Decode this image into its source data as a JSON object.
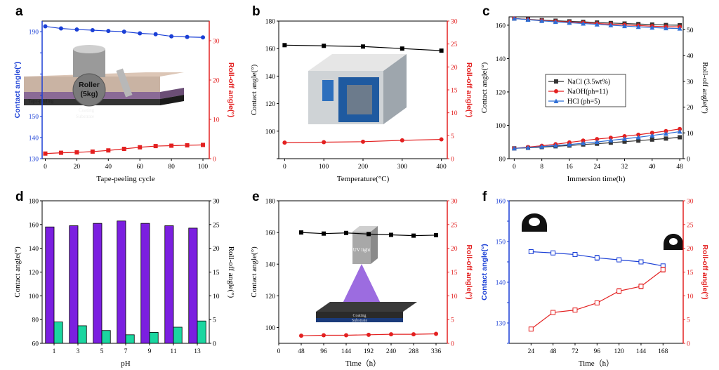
{
  "panels": [
    {
      "id": "a",
      "letter": "a",
      "xlabel": "Tape-peeling cycle",
      "ylabel_left": "Contact angle(°)",
      "ylabel_right": "Roll-off angle(°)",
      "left_color": "#1a3fd6",
      "right_color": "#e32020",
      "xlim": [
        -2,
        104
      ],
      "xticks": [
        0,
        20,
        40,
        60,
        80,
        100
      ],
      "ylim_left": [
        130,
        195
      ],
      "yticks_left": [
        130,
        140,
        150,
        160,
        170,
        180,
        190
      ],
      "ytick_labels_left": [
        "130",
        "140",
        "150",
        "",
        "",
        "",
        "190"
      ],
      "ylim_right": [
        0,
        35
      ],
      "yticks_right": [
        0,
        10,
        20,
        30
      ],
      "series": [
        {
          "axis": "left",
          "marker": "circle",
          "color": "#1a3fd6",
          "x": [
            0,
            10,
            20,
            30,
            40,
            50,
            60,
            70,
            80,
            90,
            100
          ],
          "y": [
            192.5,
            191.5,
            191,
            190.7,
            190.3,
            190,
            189.2,
            188.8,
            187.8,
            187.5,
            187.3
          ]
        },
        {
          "axis": "right",
          "marker": "square",
          "color": "#e32020",
          "x": [
            0,
            10,
            20,
            30,
            40,
            50,
            60,
            70,
            80,
            90,
            100
          ],
          "y": [
            1.3,
            1.5,
            1.6,
            1.8,
            2.1,
            2.5,
            2.9,
            3.2,
            3.3,
            3.4,
            3.5
          ]
        }
      ],
      "inset": {
        "type": "roller",
        "roller_text": "Roller",
        "weight_text": "(5kg)",
        "tape_text": "Tape-peeling",
        "coating_text": "Coating",
        "substrate_text": "Substrate"
      }
    },
    {
      "id": "b",
      "letter": "b",
      "xlabel": "Temperature(°C)",
      "ylabel_left": "Contact angle(°)",
      "ylabel_right": "Roll-off angle(°)",
      "left_color": "#000000",
      "right_color": "#e32020",
      "xlim": [
        -15,
        415
      ],
      "xticks": [
        0,
        100,
        200,
        300,
        400
      ],
      "ylim_left": [
        80,
        180
      ],
      "yticks_left": [
        80,
        100,
        120,
        140,
        160,
        180
      ],
      "ytick_labels_left": [
        "",
        "100",
        "120",
        "140",
        "160",
        "180"
      ],
      "ylim_right": [
        0,
        30
      ],
      "yticks_right": [
        0,
        5,
        10,
        15,
        20,
        25,
        30
      ],
      "series": [
        {
          "axis": "left",
          "marker": "square",
          "color": "#000000",
          "x": [
            0,
            100,
            200,
            300,
            400
          ],
          "y": [
            162.5,
            162,
            161.5,
            160,
            158.5
          ]
        },
        {
          "axis": "right",
          "marker": "circle",
          "color": "#e32020",
          "x": [
            0,
            100,
            200,
            300,
            400
          ],
          "y": [
            3.5,
            3.6,
            3.7,
            4.0,
            4.2
          ]
        }
      ],
      "inset": {
        "type": "oven"
      }
    },
    {
      "id": "c",
      "letter": "c",
      "xlabel": "Immersion time(h)",
      "ylabel_left": "Contact angle(°)",
      "ylabel_right": "Roll-off angle(°)",
      "left_color": "#000000",
      "right_color": "#000000",
      "xlim": [
        -1.5,
        49
      ],
      "xticks": [
        0,
        8,
        16,
        24,
        32,
        40,
        48
      ],
      "ylim_left": [
        80,
        165
      ],
      "yticks_left": [
        80,
        100,
        120,
        140,
        160
      ],
      "ylim_right": [
        0,
        55
      ],
      "yticks_right": [
        0,
        10,
        20,
        30,
        40,
        50
      ],
      "legend": [
        "NaCl (3.5wt%)",
        "NaOH(ph=11)",
        "HCl (ph=5)"
      ],
      "legend_colors": [
        "#333333",
        "#e32020",
        "#2f6fd6"
      ],
      "series": [
        {
          "axis": "left",
          "marker": "square",
          "color": "#333333",
          "x": [
            0,
            4,
            8,
            12,
            16,
            20,
            24,
            28,
            32,
            36,
            40,
            44,
            48
          ],
          "y": [
            164,
            163.5,
            163,
            162.7,
            162.3,
            162,
            161.6,
            161.3,
            161,
            160.7,
            160.4,
            160.1,
            160
          ]
        },
        {
          "axis": "left",
          "marker": "circle",
          "color": "#e32020",
          "x": [
            0,
            4,
            8,
            12,
            16,
            20,
            24,
            28,
            32,
            36,
            40,
            44,
            48
          ],
          "y": [
            164,
            163.4,
            162.8,
            162.3,
            161.9,
            161.5,
            161,
            160.6,
            160.2,
            159.8,
            159.4,
            159.1,
            159
          ]
        },
        {
          "axis": "left",
          "marker": "triangle",
          "color": "#2f6fd6",
          "x": [
            0,
            4,
            8,
            12,
            16,
            20,
            24,
            28,
            32,
            36,
            40,
            44,
            48
          ],
          "y": [
            164,
            163.3,
            162.6,
            162,
            161.5,
            161,
            160.5,
            160,
            159.5,
            159,
            158.6,
            158.2,
            158
          ]
        },
        {
          "axis": "right",
          "marker": "square",
          "color": "#333333",
          "x": [
            0,
            4,
            8,
            12,
            16,
            20,
            24,
            28,
            32,
            36,
            40,
            44,
            48
          ],
          "y": [
            4,
            4.2,
            4.5,
            4.8,
            5.1,
            5.5,
            5.8,
            6.2,
            6.6,
            7.0,
            7.4,
            7.8,
            8.3
          ]
        },
        {
          "axis": "right",
          "marker": "circle",
          "color": "#e32020",
          "x": [
            0,
            4,
            8,
            12,
            16,
            20,
            24,
            28,
            32,
            36,
            40,
            44,
            48
          ],
          "y": [
            4,
            4.5,
            5,
            5.6,
            6.3,
            7,
            7.6,
            8.1,
            8.7,
            9.3,
            10,
            10.7,
            11.5
          ]
        },
        {
          "axis": "right",
          "marker": "triangle",
          "color": "#2f6fd6",
          "x": [
            0,
            4,
            8,
            12,
            16,
            20,
            24,
            28,
            32,
            36,
            40,
            44,
            48
          ],
          "y": [
            4,
            4.3,
            4.7,
            5.1,
            5.5,
            6,
            6.5,
            7.1,
            7.7,
            8.3,
            9,
            9.7,
            10.5
          ]
        }
      ]
    },
    {
      "id": "d",
      "letter": "d",
      "xlabel": "pH",
      "ylabel_left": "Contact angle(°)",
      "ylabel_right": "Roll-off angle(°)",
      "left_color": "#000000",
      "right_color": "#000000",
      "categories": [
        "1",
        "3",
        "5",
        "7",
        "9",
        "11",
        "13"
      ],
      "ylim_left": [
        60,
        180
      ],
      "yticks_left": [
        60,
        80,
        100,
        120,
        140,
        160,
        180
      ],
      "ylim_right": [
        0,
        30
      ],
      "yticks_right": [
        0,
        5,
        10,
        15,
        20,
        25,
        30
      ],
      "bars_left": {
        "name": "",
        "color": "#7b1fe0",
        "values": [
          158,
          159,
          161,
          163,
          161,
          159,
          157
        ]
      },
      "bars_right": {
        "name": "",
        "color": "#1bd6a0",
        "values": [
          4.5,
          3.7,
          2.7,
          1.8,
          2.3,
          3.4,
          4.7
        ]
      }
    },
    {
      "id": "e",
      "letter": "e",
      "xlabel": "Time（h）",
      "ylabel_left": "Contact angle(°)",
      "ylabel_right": "Roll-off angle(°)",
      "left_color": "#000000",
      "right_color": "#e32020",
      "xlim": [
        0,
        360
      ],
      "xticks": [
        0,
        48,
        96,
        144,
        192,
        240,
        288,
        336
      ],
      "ylim_left": [
        90,
        180
      ],
      "yticks_left": [
        100,
        120,
        140,
        160,
        180
      ],
      "ylim_right": [
        0,
        30
      ],
      "yticks_right": [
        0,
        5,
        10,
        15,
        20,
        25,
        30
      ],
      "series": [
        {
          "axis": "left",
          "marker": "square",
          "color": "#000000",
          "x": [
            48,
            96,
            144,
            192,
            240,
            288,
            336
          ],
          "y": [
            160,
            159.3,
            159.7,
            159,
            158.5,
            158,
            158.3
          ]
        },
        {
          "axis": "right",
          "marker": "circle",
          "color": "#e32020",
          "x": [
            48,
            96,
            144,
            192,
            240,
            288,
            336
          ],
          "y": [
            1.6,
            1.7,
            1.7,
            1.8,
            1.9,
            1.9,
            2.0
          ]
        }
      ],
      "inset": {
        "type": "uv",
        "lamp_text": "UV light",
        "coating_text": "Coating",
        "substrate_text": "Substrate"
      }
    },
    {
      "id": "f",
      "letter": "f",
      "xlabel": "Time（h）",
      "ylabel_left": "Contact angle(°)",
      "ylabel_right": "Roll-off angle(°)",
      "left_color": "#1a3fd6",
      "right_color": "#e32020",
      "xlim": [
        0,
        190
      ],
      "xticks": [
        24,
        48,
        72,
        96,
        120,
        144,
        168
      ],
      "ylim_left": [
        125,
        160
      ],
      "yticks_left": [
        125,
        130,
        135,
        140,
        145,
        150,
        155,
        160
      ],
      "ytick_labels_left": [
        "",
        "130",
        "",
        "140",
        "",
        "150",
        "",
        "160"
      ],
      "ylim_right": [
        0,
        30
      ],
      "yticks_right": [
        0,
        5,
        10,
        15,
        20,
        25,
        30
      ],
      "series": [
        {
          "axis": "left",
          "marker": "square",
          "color": "#1a3fd6",
          "x": [
            24,
            48,
            72,
            96,
            120,
            144,
            168
          ],
          "y": [
            147.5,
            147.2,
            146.8,
            146,
            145.5,
            145,
            144
          ],
          "err": [
            0.4,
            0.4,
            0.5,
            0.6,
            0.5,
            0.4,
            0.4
          ]
        },
        {
          "axis": "right",
          "marker": "circle",
          "color": "#e32020",
          "x": [
            24,
            48,
            72,
            96,
            120,
            144,
            168
          ],
          "y": [
            3.0,
            6.5,
            7.0,
            8.5,
            11.0,
            12.0,
            15.5
          ],
          "err": [
            0.3,
            0.3,
            0.4,
            0.4,
            0.5,
            0.5,
            0.5
          ]
        }
      ],
      "inset": {
        "type": "drops"
      }
    }
  ]
}
